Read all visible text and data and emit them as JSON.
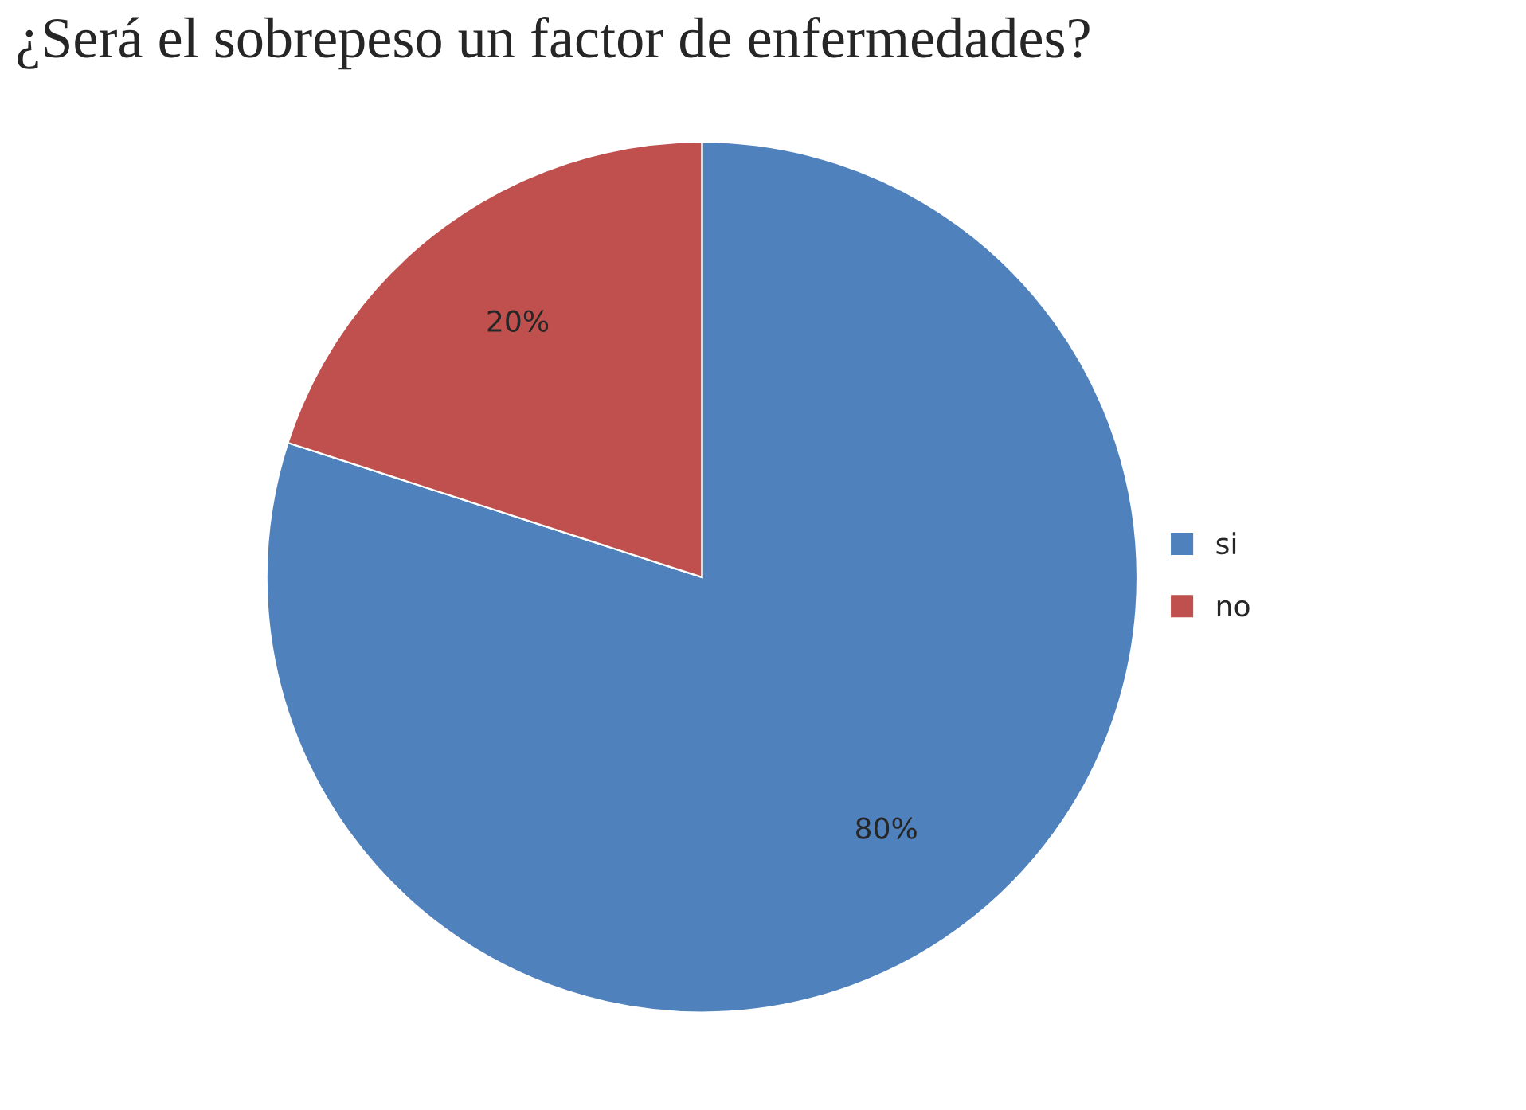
{
  "chart_data": {
    "type": "pie",
    "title": "¿Será el sobrepeso un factor de enfermedades?",
    "categories": [
      "si",
      "no"
    ],
    "values": [
      80,
      20
    ],
    "colors": [
      "#4f81bd",
      "#c0504d"
    ],
    "value_labels": [
      "80%",
      "20%"
    ],
    "legend": "right"
  }
}
